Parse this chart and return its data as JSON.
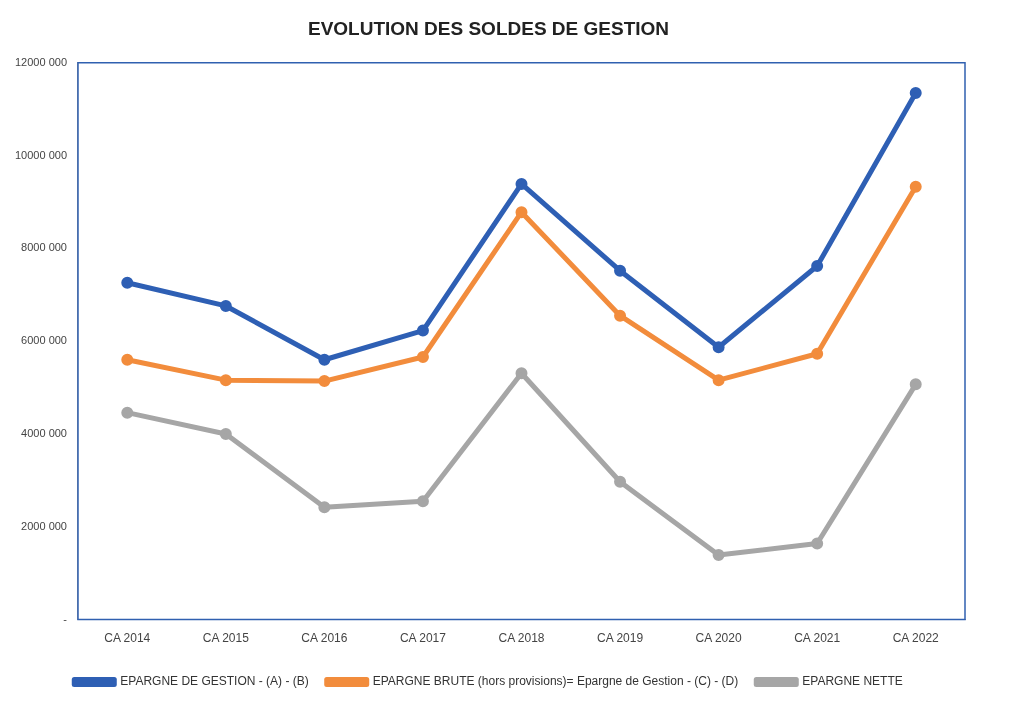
{
  "chart_data": {
    "type": "line",
    "title": "EVOLUTION DES SOLDES DE GESTION",
    "categories": [
      "CA 2014",
      "CA 2015",
      "CA 2016",
      "CA 2017",
      "CA 2018",
      "CA 2019",
      "CA 2020",
      "CA 2021",
      "CA 2022"
    ],
    "series": [
      {
        "name": "EPARGNE DE GESTION - (A) - (B)",
        "color": "#2e5fb4",
        "values": [
          7260000,
          6760000,
          5600000,
          6230000,
          9390000,
          7520000,
          5870000,
          7620000,
          11350000
        ]
      },
      {
        "name": "EPARGNE BRUTE (hors provisions)= Epargne de Gestion - (C) - (D)",
        "color": "#f28c3c",
        "values": [
          5600000,
          5160000,
          5140000,
          5660000,
          8780000,
          6550000,
          5160000,
          5730000,
          9330000
        ]
      },
      {
        "name": "EPARGNE NETTE",
        "color": "#a6a6a6",
        "values": [
          4460000,
          4000000,
          2420000,
          2550000,
          5310000,
          2970000,
          1390000,
          1640000,
          5070000
        ]
      }
    ],
    "ylim": [
      0,
      12000000
    ],
    "yticks": [
      {
        "value": 0,
        "label": "-"
      },
      {
        "value": 2000000,
        "label": "2000 000"
      },
      {
        "value": 4000000,
        "label": "4000 000"
      },
      {
        "value": 6000000,
        "label": "6000 000"
      },
      {
        "value": 8000000,
        "label": "8000 000"
      },
      {
        "value": 10000000,
        "label": "10000 000"
      },
      {
        "value": 12000000,
        "label": "12000 000"
      }
    ],
    "grid": false,
    "legend": "bottom",
    "marker": "circle",
    "line_style": "solid"
  }
}
